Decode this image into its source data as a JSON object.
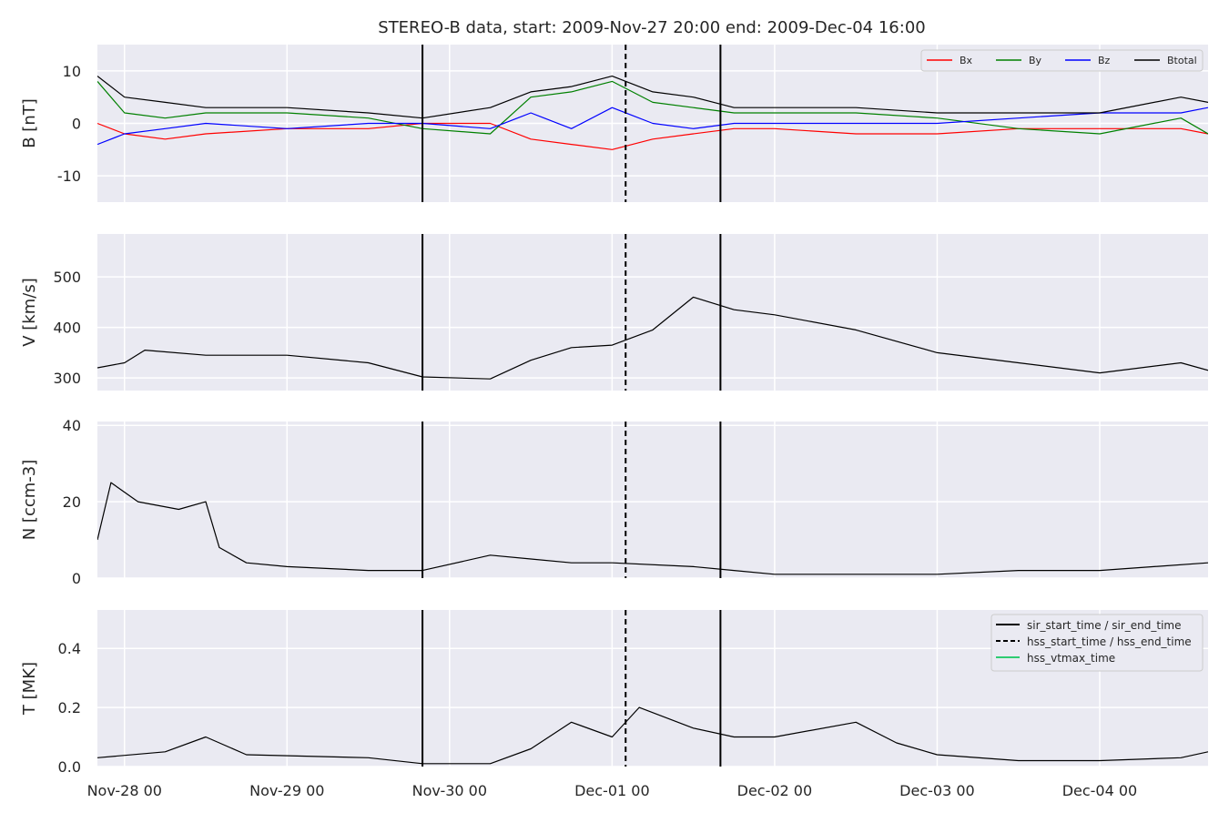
{
  "chart_data": {
    "type": "line",
    "title": "STEREO-B data, start: 2009-Nov-27 20:00  end: 2009-Dec-04 16:00",
    "x_range": [
      "2009-11-27 20:00",
      "2009-12-04 16:00"
    ],
    "x_ticks": [
      {
        "date": "2009-11-28 00:00",
        "label": "Nov-28 00"
      },
      {
        "date": "2009-11-29 00:00",
        "label": "Nov-29 00"
      },
      {
        "date": "2009-11-30 00:00",
        "label": "Nov-30 00"
      },
      {
        "date": "2009-12-01 00:00",
        "label": "Dec-01 00"
      },
      {
        "date": "2009-12-02 00:00",
        "label": "Dec-02 00"
      },
      {
        "date": "2009-12-03 00:00",
        "label": "Dec-03 00"
      },
      {
        "date": "2009-12-04 00:00",
        "label": "Dec-04 00"
      }
    ],
    "grid": true,
    "events": [
      {
        "date": "2009-11-29 20:00",
        "style": "solid"
      },
      {
        "date": "2009-12-01 02:00",
        "style": "dashed"
      },
      {
        "date": "2009-12-01 16:00",
        "style": "solid"
      }
    ],
    "panels": [
      {
        "ylabel": "B [nT]",
        "ylim": [
          -15,
          15
        ],
        "yticks": [
          -10,
          0,
          10
        ],
        "legend": {
          "placement": "top-right",
          "columns": 4
        },
        "series": [
          {
            "name": "Bx",
            "color": "#ff0000",
            "points": [
              [
                "2009-11-27 20:00",
                0
              ],
              [
                "2009-11-28 00:00",
                -2
              ],
              [
                "2009-11-28 06:00",
                -3
              ],
              [
                "2009-11-28 12:00",
                -2
              ],
              [
                "2009-11-29 00:00",
                -1
              ],
              [
                "2009-11-29 12:00",
                -1
              ],
              [
                "2009-11-29 20:00",
                0
              ],
              [
                "2009-11-30 06:00",
                0
              ],
              [
                "2009-11-30 12:00",
                -3
              ],
              [
                "2009-11-30 18:00",
                -4
              ],
              [
                "2009-12-01 00:00",
                -5
              ],
              [
                "2009-12-01 06:00",
                -3
              ],
              [
                "2009-12-01 12:00",
                -2
              ],
              [
                "2009-12-01 18:00",
                -1
              ],
              [
                "2009-12-02 00:00",
                -1
              ],
              [
                "2009-12-02 12:00",
                -2
              ],
              [
                "2009-12-03 00:00",
                -2
              ],
              [
                "2009-12-03 12:00",
                -1
              ],
              [
                "2009-12-04 00:00",
                -1
              ],
              [
                "2009-12-04 12:00",
                -1
              ],
              [
                "2009-12-04 16:00",
                -2
              ]
            ]
          },
          {
            "name": "By",
            "color": "#008000",
            "points": [
              [
                "2009-11-27 20:00",
                8
              ],
              [
                "2009-11-28 00:00",
                2
              ],
              [
                "2009-11-28 06:00",
                1
              ],
              [
                "2009-11-28 12:00",
                2
              ],
              [
                "2009-11-29 00:00",
                2
              ],
              [
                "2009-11-29 12:00",
                1
              ],
              [
                "2009-11-29 20:00",
                -1
              ],
              [
                "2009-11-30 06:00",
                -2
              ],
              [
                "2009-11-30 12:00",
                5
              ],
              [
                "2009-11-30 18:00",
                6
              ],
              [
                "2009-12-01 00:00",
                8
              ],
              [
                "2009-12-01 06:00",
                4
              ],
              [
                "2009-12-01 12:00",
                3
              ],
              [
                "2009-12-01 18:00",
                2
              ],
              [
                "2009-12-02 00:00",
                2
              ],
              [
                "2009-12-02 12:00",
                2
              ],
              [
                "2009-12-03 00:00",
                1
              ],
              [
                "2009-12-03 12:00",
                -1
              ],
              [
                "2009-12-04 00:00",
                -2
              ],
              [
                "2009-12-04 12:00",
                1
              ],
              [
                "2009-12-04 16:00",
                -2
              ]
            ]
          },
          {
            "name": "Bz",
            "color": "#0000ff",
            "points": [
              [
                "2009-11-27 20:00",
                -4
              ],
              [
                "2009-11-28 00:00",
                -2
              ],
              [
                "2009-11-28 06:00",
                -1
              ],
              [
                "2009-11-28 12:00",
                0
              ],
              [
                "2009-11-29 00:00",
                -1
              ],
              [
                "2009-11-29 12:00",
                0
              ],
              [
                "2009-11-29 20:00",
                0
              ],
              [
                "2009-11-30 06:00",
                -1
              ],
              [
                "2009-11-30 12:00",
                2
              ],
              [
                "2009-11-30 18:00",
                -1
              ],
              [
                "2009-12-01 00:00",
                3
              ],
              [
                "2009-12-01 06:00",
                0
              ],
              [
                "2009-12-01 12:00",
                -1
              ],
              [
                "2009-12-01 18:00",
                0
              ],
              [
                "2009-12-02 00:00",
                0
              ],
              [
                "2009-12-02 12:00",
                0
              ],
              [
                "2009-12-03 00:00",
                0
              ],
              [
                "2009-12-03 12:00",
                1
              ],
              [
                "2009-12-04 00:00",
                2
              ],
              [
                "2009-12-04 12:00",
                2
              ],
              [
                "2009-12-04 16:00",
                3
              ]
            ]
          },
          {
            "name": "Btotal",
            "color": "#000000",
            "points": [
              [
                "2009-11-27 20:00",
                9
              ],
              [
                "2009-11-28 00:00",
                5
              ],
              [
                "2009-11-28 06:00",
                4
              ],
              [
                "2009-11-28 12:00",
                3
              ],
              [
                "2009-11-29 00:00",
                3
              ],
              [
                "2009-11-29 12:00",
                2
              ],
              [
                "2009-11-29 20:00",
                1
              ],
              [
                "2009-11-30 06:00",
                3
              ],
              [
                "2009-11-30 12:00",
                6
              ],
              [
                "2009-11-30 18:00",
                7
              ],
              [
                "2009-12-01 00:00",
                9
              ],
              [
                "2009-12-01 06:00",
                6
              ],
              [
                "2009-12-01 12:00",
                5
              ],
              [
                "2009-12-01 18:00",
                3
              ],
              [
                "2009-12-02 00:00",
                3
              ],
              [
                "2009-12-02 12:00",
                3
              ],
              [
                "2009-12-03 00:00",
                2
              ],
              [
                "2009-12-03 12:00",
                2
              ],
              [
                "2009-12-04 00:00",
                2
              ],
              [
                "2009-12-04 12:00",
                5
              ],
              [
                "2009-12-04 16:00",
                4
              ]
            ]
          }
        ]
      },
      {
        "ylabel": "V [km/s]",
        "ylim": [
          275,
          585
        ],
        "yticks": [
          300,
          400,
          500
        ],
        "series": [
          {
            "color": "#000000",
            "points": [
              [
                "2009-11-27 20:00",
                320
              ],
              [
                "2009-11-28 00:00",
                330
              ],
              [
                "2009-11-28 03:00",
                355
              ],
              [
                "2009-11-28 12:00",
                345
              ],
              [
                "2009-11-29 00:00",
                345
              ],
              [
                "2009-11-29 12:00",
                330
              ],
              [
                "2009-11-29 20:00",
                302
              ],
              [
                "2009-11-30 06:00",
                298
              ],
              [
                "2009-11-30 12:00",
                335
              ],
              [
                "2009-11-30 18:00",
                360
              ],
              [
                "2009-12-01 00:00",
                365
              ],
              [
                "2009-12-01 06:00",
                395
              ],
              [
                "2009-12-01 12:00",
                460
              ],
              [
                "2009-12-01 18:00",
                435
              ],
              [
                "2009-12-02 00:00",
                425
              ],
              [
                "2009-12-02 12:00",
                395
              ],
              [
                "2009-12-03 00:00",
                350
              ],
              [
                "2009-12-03 12:00",
                330
              ],
              [
                "2009-12-04 00:00",
                310
              ],
              [
                "2009-12-04 12:00",
                330
              ],
              [
                "2009-12-04 16:00",
                315
              ]
            ]
          }
        ]
      },
      {
        "ylabel": "N [ccm-3]",
        "ylim": [
          0,
          41
        ],
        "yticks": [
          0,
          20,
          40
        ],
        "series": [
          {
            "color": "#000000",
            "points": [
              [
                "2009-11-27 20:00",
                10
              ],
              [
                "2009-11-27 22:00",
                25
              ],
              [
                "2009-11-28 02:00",
                20
              ],
              [
                "2009-11-28 08:00",
                18
              ],
              [
                "2009-11-28 12:00",
                20
              ],
              [
                "2009-11-28 14:00",
                8
              ],
              [
                "2009-11-28 18:00",
                4
              ],
              [
                "2009-11-29 00:00",
                3
              ],
              [
                "2009-11-29 12:00",
                2
              ],
              [
                "2009-11-29 20:00",
                2
              ],
              [
                "2009-11-30 06:00",
                6
              ],
              [
                "2009-11-30 12:00",
                5
              ],
              [
                "2009-11-30 18:00",
                4
              ],
              [
                "2009-12-01 00:00",
                4
              ],
              [
                "2009-12-01 12:00",
                3
              ],
              [
                "2009-12-01 18:00",
                2
              ],
              [
                "2009-12-02 00:00",
                1
              ],
              [
                "2009-12-03 00:00",
                1
              ],
              [
                "2009-12-03 12:00",
                2
              ],
              [
                "2009-12-04 00:00",
                2
              ],
              [
                "2009-12-04 16:00",
                4
              ]
            ]
          }
        ]
      },
      {
        "ylabel": "T [MK]",
        "ylim": [
          0,
          0.53
        ],
        "yticks": [
          0.0,
          0.2,
          0.4
        ],
        "tick_labels": [
          "0.0",
          "0.2",
          "0.4"
        ],
        "legend": {
          "placement": "top-right",
          "columns": 1
        },
        "series": [
          {
            "color": "#000000",
            "points": [
              [
                "2009-11-27 20:00",
                0.03
              ],
              [
                "2009-11-28 06:00",
                0.05
              ],
              [
                "2009-11-28 12:00",
                0.1
              ],
              [
                "2009-11-28 18:00",
                0.04
              ],
              [
                "2009-11-29 12:00",
                0.03
              ],
              [
                "2009-11-29 20:00",
                0.01
              ],
              [
                "2009-11-30 06:00",
                0.01
              ],
              [
                "2009-11-30 12:00",
                0.06
              ],
              [
                "2009-11-30 18:00",
                0.15
              ],
              [
                "2009-12-01 00:00",
                0.1
              ],
              [
                "2009-12-01 04:00",
                0.2
              ],
              [
                "2009-12-01 12:00",
                0.13
              ],
              [
                "2009-12-01 18:00",
                0.1
              ],
              [
                "2009-12-02 00:00",
                0.1
              ],
              [
                "2009-12-02 12:00",
                0.15
              ],
              [
                "2009-12-02 18:00",
                0.08
              ],
              [
                "2009-12-03 00:00",
                0.04
              ],
              [
                "2009-12-03 12:00",
                0.02
              ],
              [
                "2009-12-04 00:00",
                0.02
              ],
              [
                "2009-12-04 12:00",
                0.03
              ],
              [
                "2009-12-04 16:00",
                0.05
              ]
            ]
          }
        ]
      }
    ],
    "event_legend": [
      {
        "label": "sir_start_time / sir_end_time",
        "style": "solid",
        "color": "#000000"
      },
      {
        "label": "hss_start_time / hss_end_time",
        "style": "dashed",
        "color": "#000000"
      },
      {
        "label": "hss_vtmax_time",
        "style": "solid",
        "color": "#2ecc71"
      }
    ]
  }
}
